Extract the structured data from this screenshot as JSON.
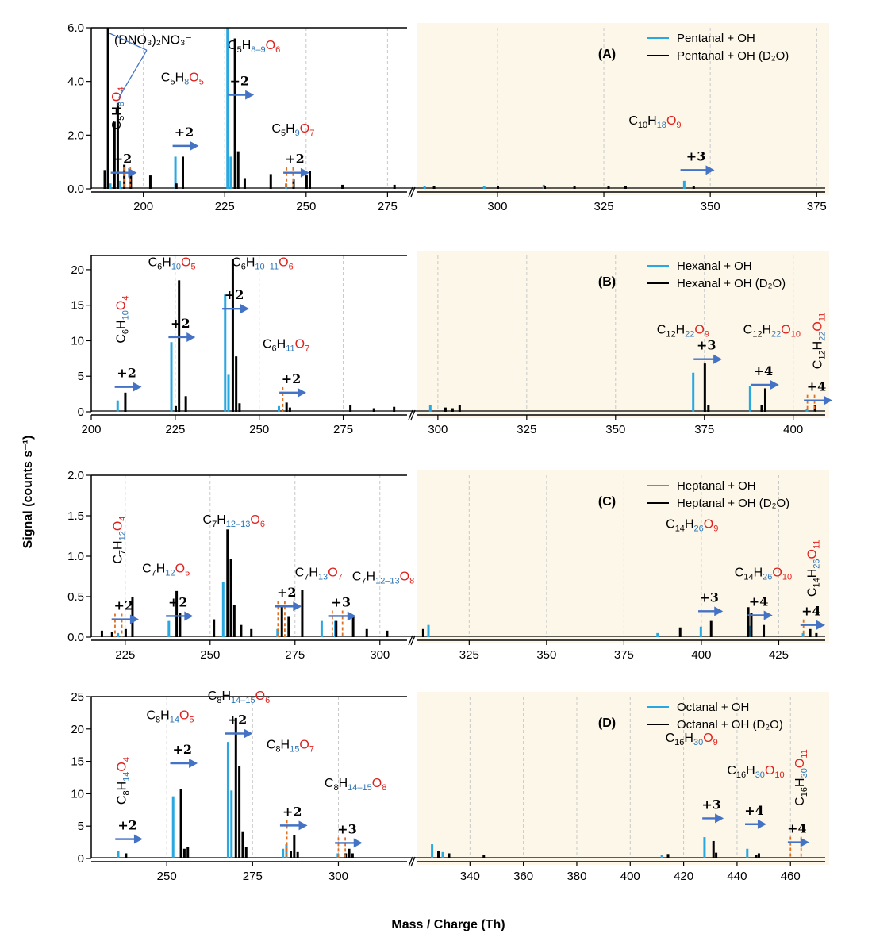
{
  "colors": {
    "h2o": "#29a8e0",
    "d2o": "#000000",
    "arrow": "#4472c4",
    "marker": "#e07020",
    "o_red": "#e0201c",
    "h_blue": "#2e75b6",
    "shade": "#fdf7e9"
  },
  "axis_labels": {
    "y": "Signal (counts s⁻¹)",
    "x": "Mass / Charge (Th)"
  },
  "chart_data": [
    {
      "type": "bar",
      "label": "(A)",
      "legend": [
        "Pentanal + OH",
        "Pentanal + OH (D₂O)"
      ],
      "legend_position": "top-right",
      "ylim": [
        0,
        6
      ],
      "yticks": [
        0,
        2,
        4,
        6
      ],
      "ytick_labels": [
        "0.0",
        "2.0",
        "4.0",
        "6.0"
      ],
      "left_xlim": [
        184,
        281
      ],
      "left_xticks": [
        200,
        225,
        250,
        275
      ],
      "right_xlim": [
        281,
        377
      ],
      "right_xticks": [
        300,
        325,
        350,
        375
      ],
      "series": [
        {
          "name": "Pentanal + OH",
          "x": [
            190,
            193,
            210,
            226,
            227,
            244,
            283,
            297,
            311,
            344
          ],
          "values": [
            0.2,
            0.3,
            1.2,
            6.0,
            1.2,
            0.2,
            0.1,
            0.1,
            0.15,
            0.3
          ]
        },
        {
          "name": "Pentanal + OH (D₂O)",
          "x": [
            188,
            189,
            191,
            192,
            194,
            196,
            202,
            210,
            212,
            228,
            229,
            231,
            239,
            246,
            250,
            251,
            261,
            277,
            285,
            300,
            311,
            318,
            326,
            330,
            346
          ],
          "values": [
            0.7,
            6.0,
            2.5,
            3.2,
            0.9,
            0.7,
            0.5,
            0.2,
            1.2,
            5.6,
            1.4,
            0.4,
            0.55,
            0.35,
            0.5,
            0.65,
            0.15,
            0.15,
            0.1,
            0.1,
            0.1,
            0.1,
            0.1,
            0.1,
            0.1
          ]
        }
      ],
      "annotations": [
        {
          "formula": [
            "C",
            "5",
            "H",
            "8",
            "O",
            "4"
          ],
          "x": 193,
          "y": 3.0,
          "vertical": true
        },
        {
          "formula": [
            "C",
            "5",
            "H",
            "8",
            "O",
            "5"
          ],
          "x": 212,
          "y": 4.0
        },
        {
          "formula": [
            "C",
            "5",
            "H",
            "8–9",
            "O",
            "6"
          ],
          "x": 234,
          "y": 5.2
        },
        {
          "formula": [
            "C",
            "5",
            "H",
            "9",
            "O",
            "7"
          ],
          "x": 246,
          "y": 2.1
        },
        {
          "formula": [
            "C",
            "10",
            "H",
            "18",
            "O",
            "9"
          ],
          "x": 337,
          "y": 2.4
        }
      ],
      "shifts": [
        {
          "label": "+2",
          "x0": 190,
          "x1": 198,
          "y": 0.6,
          "markers": [
            194,
            196
          ]
        },
        {
          "label": "+2",
          "x0": 209,
          "x1": 217,
          "y": 1.6
        },
        {
          "label": "+2",
          "x0": 226,
          "x1": 234,
          "y": 3.5
        },
        {
          "label": "+2",
          "x0": 243,
          "x1": 251,
          "y": 0.6,
          "markers": [
            244,
            246
          ]
        },
        {
          "label": "+3",
          "x0": 343,
          "x1": 351,
          "y": 0.7
        }
      ],
      "special_labels": [
        {
          "text": "(DNO₃)₂NO₃⁻",
          "x": 203,
          "y": 5.4
        }
      ]
    },
    {
      "type": "bar",
      "label": "(B)",
      "legend": [
        "Hexanal + OH",
        "Hexanal + OH (D₂O)"
      ],
      "legend_position": "top-right",
      "ylim": [
        0,
        22
      ],
      "yticks": [
        0,
        5,
        10,
        15,
        20
      ],
      "ytick_labels": [
        "0",
        "5",
        "10",
        "15",
        "20"
      ],
      "left_xlim": [
        200,
        294
      ],
      "left_xticks": [
        200,
        225,
        250,
        275
      ],
      "right_xlim": [
        294,
        409
      ],
      "right_xticks": [
        300,
        325,
        350,
        375,
        400
      ],
      "series": [
        {
          "name": "Hexanal + OH",
          "x": [
            208,
            224,
            240,
            241,
            256,
            298,
            372,
            388,
            404
          ],
          "values": [
            1.6,
            9.8,
            16.5,
            5.2,
            0.8,
            1.0,
            5.5,
            3.6,
            0.4
          ]
        },
        {
          "name": "Hexanal + OH (D₂O)",
          "x": [
            210,
            225,
            226,
            228,
            242,
            243,
            244,
            258,
            259,
            277,
            284,
            290,
            302,
            304,
            306,
            375,
            376,
            391,
            392,
            406
          ],
          "values": [
            2.7,
            0.8,
            18.5,
            2.2,
            21.5,
            7.8,
            1.2,
            1.3,
            0.6,
            1.0,
            0.5,
            0.7,
            0.6,
            0.5,
            1.0,
            6.8,
            1.0,
            1.0,
            3.3,
            0.9
          ]
        }
      ],
      "annotations": [
        {
          "formula": [
            "C",
            "6",
            "H",
            "10",
            "O",
            "4"
          ],
          "x": 210,
          "y": 13.0,
          "vertical": true
        },
        {
          "formula": [
            "C",
            "6",
            "H",
            "10",
            "O",
            "5"
          ],
          "x": 224,
          "y": 20.5
        },
        {
          "formula": [
            "C",
            "6",
            "H",
            "10–11",
            "O",
            "6"
          ],
          "x": 251,
          "y": 20.5
        },
        {
          "formula": [
            "C",
            "6",
            "H",
            "11",
            "O",
            "7"
          ],
          "x": 258,
          "y": 9.0
        },
        {
          "formula": [
            "C",
            "12",
            "H",
            "22",
            "O",
            "9"
          ],
          "x": 369,
          "y": 11.0
        },
        {
          "formula": [
            "C",
            "12",
            "H",
            "22",
            "O",
            "10"
          ],
          "x": 394,
          "y": 11.0
        },
        {
          "formula": [
            "C",
            "12",
            "H",
            "22",
            "O",
            "11"
          ],
          "x": 408,
          "y": 10.0,
          "vertical": true
        }
      ],
      "shifts": [
        {
          "label": "+2",
          "x0": 207,
          "x1": 215,
          "y": 3.5
        },
        {
          "label": "+2",
          "x0": 223,
          "x1": 231,
          "y": 10.5
        },
        {
          "label": "+2",
          "x0": 239,
          "x1": 247,
          "y": 14.5
        },
        {
          "label": "+2",
          "x0": 256,
          "x1": 264,
          "y": 2.7,
          "markers": [
            257
          ]
        },
        {
          "label": "+3",
          "x0": 372,
          "x1": 380,
          "y": 7.4
        },
        {
          "label": "+4",
          "x0": 388,
          "x1": 396,
          "y": 3.8
        },
        {
          "label": "+4",
          "x0": 403,
          "x1": 411,
          "y": 1.6,
          "markers": [
            404,
            406
          ]
        }
      ],
      "special_labels": []
    },
    {
      "type": "bar",
      "label": "(C)",
      "legend": [
        "Heptanal + OH",
        "Heptanal + OH (D₂O)"
      ],
      "legend_position": "top-right",
      "ylim": [
        0,
        2
      ],
      "yticks": [
        0,
        0.5,
        1,
        1.5,
        2
      ],
      "ytick_labels": [
        "0.0",
        "0.5",
        "1.0",
        "1.5",
        "2.0"
      ],
      "left_xlim": [
        215,
        308
      ],
      "left_xticks": [
        225,
        250,
        275,
        300
      ],
      "right_xlim": [
        308,
        440
      ],
      "right_xticks": [
        325,
        350,
        375,
        400,
        425
      ],
      "series": [
        {
          "name": "Heptanal + OH",
          "x": [
            223,
            238,
            254,
            270,
            283,
            287,
            312,
            386,
            400,
            416,
            433
          ],
          "values": [
            0.05,
            0.2,
            0.68,
            0.1,
            0.2,
            0.2,
            0.15,
            0.05,
            0.13,
            0.14,
            0.05
          ]
        },
        {
          "name": "Heptanal + OH (D₂O)",
          "x": [
            218,
            221,
            225,
            227,
            240,
            241,
            251,
            255,
            256,
            257,
            259,
            262,
            271,
            273,
            277,
            287,
            292,
            296,
            302,
            310,
            393,
            403,
            415,
            416,
            420,
            435,
            437
          ],
          "values": [
            0.08,
            0.06,
            0.1,
            0.5,
            0.57,
            0.3,
            0.22,
            1.33,
            0.97,
            0.4,
            0.15,
            0.1,
            0.4,
            0.25,
            0.58,
            0.2,
            0.26,
            0.1,
            0.08,
            0.1,
            0.12,
            0.2,
            0.37,
            0.3,
            0.15,
            0.1,
            0.05
          ]
        }
      ],
      "annotations": [
        {
          "formula": [
            "C",
            "7",
            "H",
            "12",
            "O",
            "4"
          ],
          "x": 224,
          "y": 1.2,
          "vertical": true
        },
        {
          "formula": [
            "C",
            "7",
            "H",
            "12",
            "O",
            "5"
          ],
          "x": 237,
          "y": 0.8
        },
        {
          "formula": [
            "C",
            "7",
            "H",
            "12–13",
            "O",
            "6"
          ],
          "x": 257,
          "y": 1.4
        },
        {
          "formula": [
            "C",
            "7",
            "H",
            "13",
            "O",
            "7"
          ],
          "x": 282,
          "y": 0.75
        },
        {
          "formula": [
            "C",
            "7",
            "H",
            "12–13",
            "O",
            "8"
          ],
          "x": 301,
          "y": 0.7
        },
        {
          "formula": [
            "C",
            "14",
            "H",
            "26",
            "O",
            "9"
          ],
          "x": 397,
          "y": 1.35
        },
        {
          "formula": [
            "C",
            "14",
            "H",
            "26",
            "O",
            "10"
          ],
          "x": 420,
          "y": 0.75
        },
        {
          "formula": [
            "C",
            "14",
            "H",
            "26",
            "O",
            "11"
          ],
          "x": 437,
          "y": 0.85,
          "vertical": true
        }
      ],
      "shifts": [
        {
          "label": "+2",
          "x0": 221,
          "x1": 229,
          "y": 0.22,
          "markers": [
            222,
            224
          ]
        },
        {
          "label": "+2",
          "x0": 237,
          "x1": 245,
          "y": 0.26
        },
        {
          "label": "+2",
          "x0": 269,
          "x1": 277,
          "y": 0.38,
          "markers": [
            270,
            272
          ]
        },
        {
          "label": "+3",
          "x0": 285,
          "x1": 293,
          "y": 0.26,
          "markers": [
            286,
            289
          ]
        },
        {
          "label": "+3",
          "x0": 399,
          "x1": 407,
          "y": 0.32
        },
        {
          "label": "+4",
          "x0": 415,
          "x1": 423,
          "y": 0.27
        },
        {
          "label": "+4",
          "x0": 432,
          "x1": 440,
          "y": 0.15,
          "markers": [
            433
          ]
        }
      ],
      "special_labels": []
    },
    {
      "type": "bar",
      "label": "(D)",
      "legend": [
        "Octanal + OH",
        "Octanal + OH (D₂O)"
      ],
      "legend_position": "top-right",
      "ylim": [
        0,
        25
      ],
      "yticks": [
        0,
        5,
        10,
        15,
        20,
        25
      ],
      "ytick_labels": [
        "0",
        "5",
        "10",
        "15",
        "20",
        "25"
      ],
      "left_xlim": [
        228,
        320
      ],
      "left_xticks": [
        250,
        275,
        300
      ],
      "right_xlim": [
        320,
        473
      ],
      "right_xticks": [
        340,
        360,
        380,
        400,
        420,
        440,
        460
      ],
      "series": [
        {
          "name": "Octanal + OH",
          "x": [
            236,
            252,
            268,
            269,
            284,
            285,
            300,
            326,
            330,
            412,
            428,
            444
          ],
          "values": [
            1.2,
            9.6,
            18.0,
            10.5,
            1.5,
            2.2,
            0.8,
            2.2,
            1.0,
            0.6,
            3.3,
            1.5
          ]
        },
        {
          "name": "Octanal + OH (D₂O)",
          "x": [
            238,
            254,
            255,
            256,
            270,
            271,
            272,
            273,
            286,
            287,
            288,
            302,
            303,
            304,
            328,
            332,
            345,
            414,
            431,
            432,
            447,
            448
          ],
          "values": [
            0.8,
            10.7,
            1.5,
            1.8,
            21.7,
            14.3,
            4.2,
            1.8,
            1.2,
            3.6,
            1.0,
            0.8,
            1.5,
            0.8,
            1.2,
            0.8,
            0.6,
            0.7,
            2.7,
            0.9,
            0.5,
            0.8
          ]
        }
      ],
      "annotations": [
        {
          "formula": [
            "C",
            "8",
            "H",
            "14",
            "O",
            "4"
          ],
          "x": 238,
          "y": 12.0,
          "vertical": true
        },
        {
          "formula": [
            "C",
            "8",
            "H",
            "14",
            "O",
            "5"
          ],
          "x": 251,
          "y": 21.5
        },
        {
          "formula": [
            "C",
            "8",
            "H",
            "14–15",
            "O",
            "6"
          ],
          "x": 271,
          "y": 24.5
        },
        {
          "formula": [
            "C",
            "8",
            "H",
            "15",
            "O",
            "7"
          ],
          "x": 286,
          "y": 17.0
        },
        {
          "formula": [
            "C",
            "8",
            "H",
            "14–15",
            "O",
            "8"
          ],
          "x": 305,
          "y": 11.0
        },
        {
          "formula": [
            "C",
            "16",
            "H",
            "30",
            "O",
            "9"
          ],
          "x": 423,
          "y": 18.0
        },
        {
          "formula": [
            "C",
            "16",
            "H",
            "30",
            "O",
            "10"
          ],
          "x": 447,
          "y": 13.0
        },
        {
          "formula": [
            "C",
            "16",
            "H",
            "30",
            "O",
            "11"
          ],
          "x": 465,
          "y": 12.5,
          "vertical": true
        }
      ],
      "shifts": [
        {
          "label": "+2",
          "x0": 235,
          "x1": 243,
          "y": 3.0
        },
        {
          "label": "+2",
          "x0": 251,
          "x1": 259,
          "y": 14.7
        },
        {
          "label": "+2",
          "x0": 267,
          "x1": 275,
          "y": 19.3
        },
        {
          "label": "+2",
          "x0": 283,
          "x1": 291,
          "y": 5.1,
          "markers": [
            285
          ]
        },
        {
          "label": "+3",
          "x0": 299,
          "x1": 307,
          "y": 2.4,
          "markers": [
            300,
            302
          ]
        },
        {
          "label": "+3",
          "x0": 427,
          "x1": 435,
          "y": 6.2
        },
        {
          "label": "+4",
          "x0": 443,
          "x1": 451,
          "y": 5.3
        },
        {
          "label": "+4",
          "x0": 459,
          "x1": 467,
          "y": 2.5,
          "markers": [
            460,
            464
          ]
        }
      ],
      "special_labels": []
    }
  ]
}
